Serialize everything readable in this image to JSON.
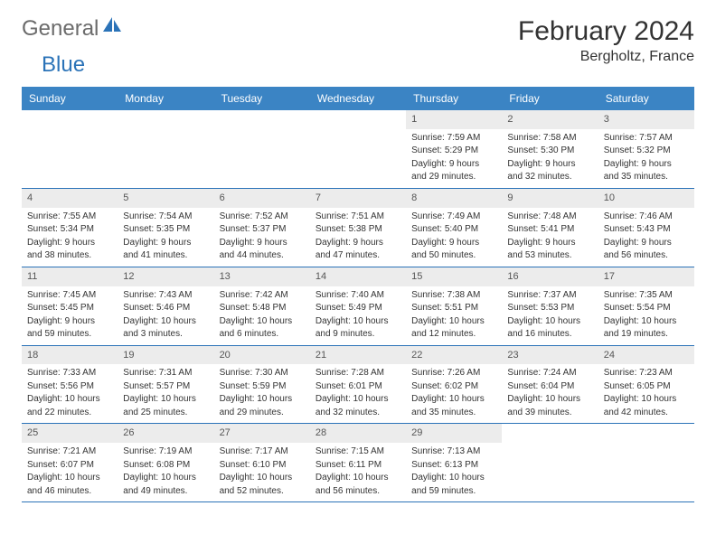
{
  "logo": {
    "general": "General",
    "blue": "Blue"
  },
  "title": "February 2024",
  "location": "Bergholtz, France",
  "colors": {
    "header_bg": "#3b84c4",
    "header_text": "#ffffff",
    "daynum_bg": "#ececec",
    "border": "#2b73b8",
    "text": "#333333",
    "logo_gray": "#6b6b6b",
    "logo_blue": "#2b73b8"
  },
  "day_headers": [
    "Sunday",
    "Monday",
    "Tuesday",
    "Wednesday",
    "Thursday",
    "Friday",
    "Saturday"
  ],
  "weeks": [
    [
      null,
      null,
      null,
      null,
      {
        "n": "1",
        "sr": "Sunrise: 7:59 AM",
        "ss": "Sunset: 5:29 PM",
        "d1": "Daylight: 9 hours",
        "d2": "and 29 minutes."
      },
      {
        "n": "2",
        "sr": "Sunrise: 7:58 AM",
        "ss": "Sunset: 5:30 PM",
        "d1": "Daylight: 9 hours",
        "d2": "and 32 minutes."
      },
      {
        "n": "3",
        "sr": "Sunrise: 7:57 AM",
        "ss": "Sunset: 5:32 PM",
        "d1": "Daylight: 9 hours",
        "d2": "and 35 minutes."
      }
    ],
    [
      {
        "n": "4",
        "sr": "Sunrise: 7:55 AM",
        "ss": "Sunset: 5:34 PM",
        "d1": "Daylight: 9 hours",
        "d2": "and 38 minutes."
      },
      {
        "n": "5",
        "sr": "Sunrise: 7:54 AM",
        "ss": "Sunset: 5:35 PM",
        "d1": "Daylight: 9 hours",
        "d2": "and 41 minutes."
      },
      {
        "n": "6",
        "sr": "Sunrise: 7:52 AM",
        "ss": "Sunset: 5:37 PM",
        "d1": "Daylight: 9 hours",
        "d2": "and 44 minutes."
      },
      {
        "n": "7",
        "sr": "Sunrise: 7:51 AM",
        "ss": "Sunset: 5:38 PM",
        "d1": "Daylight: 9 hours",
        "d2": "and 47 minutes."
      },
      {
        "n": "8",
        "sr": "Sunrise: 7:49 AM",
        "ss": "Sunset: 5:40 PM",
        "d1": "Daylight: 9 hours",
        "d2": "and 50 minutes."
      },
      {
        "n": "9",
        "sr": "Sunrise: 7:48 AM",
        "ss": "Sunset: 5:41 PM",
        "d1": "Daylight: 9 hours",
        "d2": "and 53 minutes."
      },
      {
        "n": "10",
        "sr": "Sunrise: 7:46 AM",
        "ss": "Sunset: 5:43 PM",
        "d1": "Daylight: 9 hours",
        "d2": "and 56 minutes."
      }
    ],
    [
      {
        "n": "11",
        "sr": "Sunrise: 7:45 AM",
        "ss": "Sunset: 5:45 PM",
        "d1": "Daylight: 9 hours",
        "d2": "and 59 minutes."
      },
      {
        "n": "12",
        "sr": "Sunrise: 7:43 AM",
        "ss": "Sunset: 5:46 PM",
        "d1": "Daylight: 10 hours",
        "d2": "and 3 minutes."
      },
      {
        "n": "13",
        "sr": "Sunrise: 7:42 AM",
        "ss": "Sunset: 5:48 PM",
        "d1": "Daylight: 10 hours",
        "d2": "and 6 minutes."
      },
      {
        "n": "14",
        "sr": "Sunrise: 7:40 AM",
        "ss": "Sunset: 5:49 PM",
        "d1": "Daylight: 10 hours",
        "d2": "and 9 minutes."
      },
      {
        "n": "15",
        "sr": "Sunrise: 7:38 AM",
        "ss": "Sunset: 5:51 PM",
        "d1": "Daylight: 10 hours",
        "d2": "and 12 minutes."
      },
      {
        "n": "16",
        "sr": "Sunrise: 7:37 AM",
        "ss": "Sunset: 5:53 PM",
        "d1": "Daylight: 10 hours",
        "d2": "and 16 minutes."
      },
      {
        "n": "17",
        "sr": "Sunrise: 7:35 AM",
        "ss": "Sunset: 5:54 PM",
        "d1": "Daylight: 10 hours",
        "d2": "and 19 minutes."
      }
    ],
    [
      {
        "n": "18",
        "sr": "Sunrise: 7:33 AM",
        "ss": "Sunset: 5:56 PM",
        "d1": "Daylight: 10 hours",
        "d2": "and 22 minutes."
      },
      {
        "n": "19",
        "sr": "Sunrise: 7:31 AM",
        "ss": "Sunset: 5:57 PM",
        "d1": "Daylight: 10 hours",
        "d2": "and 25 minutes."
      },
      {
        "n": "20",
        "sr": "Sunrise: 7:30 AM",
        "ss": "Sunset: 5:59 PM",
        "d1": "Daylight: 10 hours",
        "d2": "and 29 minutes."
      },
      {
        "n": "21",
        "sr": "Sunrise: 7:28 AM",
        "ss": "Sunset: 6:01 PM",
        "d1": "Daylight: 10 hours",
        "d2": "and 32 minutes."
      },
      {
        "n": "22",
        "sr": "Sunrise: 7:26 AM",
        "ss": "Sunset: 6:02 PM",
        "d1": "Daylight: 10 hours",
        "d2": "and 35 minutes."
      },
      {
        "n": "23",
        "sr": "Sunrise: 7:24 AM",
        "ss": "Sunset: 6:04 PM",
        "d1": "Daylight: 10 hours",
        "d2": "and 39 minutes."
      },
      {
        "n": "24",
        "sr": "Sunrise: 7:23 AM",
        "ss": "Sunset: 6:05 PM",
        "d1": "Daylight: 10 hours",
        "d2": "and 42 minutes."
      }
    ],
    [
      {
        "n": "25",
        "sr": "Sunrise: 7:21 AM",
        "ss": "Sunset: 6:07 PM",
        "d1": "Daylight: 10 hours",
        "d2": "and 46 minutes."
      },
      {
        "n": "26",
        "sr": "Sunrise: 7:19 AM",
        "ss": "Sunset: 6:08 PM",
        "d1": "Daylight: 10 hours",
        "d2": "and 49 minutes."
      },
      {
        "n": "27",
        "sr": "Sunrise: 7:17 AM",
        "ss": "Sunset: 6:10 PM",
        "d1": "Daylight: 10 hours",
        "d2": "and 52 minutes."
      },
      {
        "n": "28",
        "sr": "Sunrise: 7:15 AM",
        "ss": "Sunset: 6:11 PM",
        "d1": "Daylight: 10 hours",
        "d2": "and 56 minutes."
      },
      {
        "n": "29",
        "sr": "Sunrise: 7:13 AM",
        "ss": "Sunset: 6:13 PM",
        "d1": "Daylight: 10 hours",
        "d2": "and 59 minutes."
      },
      null,
      null
    ]
  ]
}
